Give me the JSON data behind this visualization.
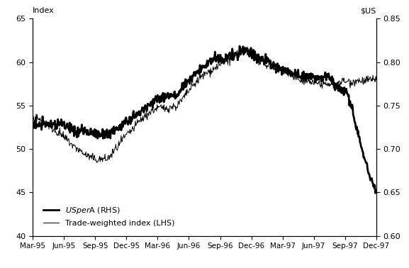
{
  "ylabel_left": "Index",
  "ylabel_right": "$US",
  "xlim": [
    0,
    1
  ],
  "ylim_left": [
    40,
    65
  ],
  "ylim_right": [
    0.6,
    0.85
  ],
  "xtick_positions": [
    0,
    0.0909,
    0.1818,
    0.2727,
    0.3636,
    0.4545,
    0.5454,
    0.6363,
    0.7272,
    0.8181,
    0.909,
    1.0
  ],
  "xtick_labels": [
    "Mar-95",
    "Jun-95",
    "Sep-95",
    "Dec-95",
    "Mar-96",
    "Jun-96",
    "Sep-96",
    "Dec-96",
    "Mar-97",
    "Jun-97",
    "Sep-97",
    "Dec-97"
  ],
  "yticks_left": [
    40,
    45,
    50,
    55,
    60,
    65
  ],
  "yticks_right": [
    0.6,
    0.65,
    0.7,
    0.75,
    0.8,
    0.85
  ],
  "noise_seed": 42,
  "n_points": 700,
  "background_color": "#ffffff",
  "line_color": "#000000",
  "lw_thick": 2.0,
  "lw_thin": 0.7
}
